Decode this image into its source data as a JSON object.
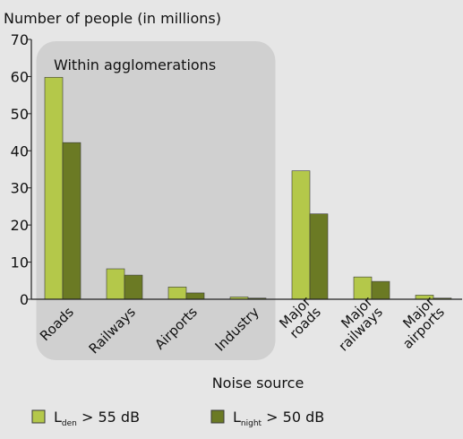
{
  "chart_data": {
    "type": "bar",
    "ylabel": "Number of people (in millions)",
    "xlabel": "Noise source",
    "ylim": [
      0,
      70
    ],
    "yticks": [
      0,
      10,
      20,
      30,
      40,
      50,
      60,
      70
    ],
    "grid": false,
    "categories": [
      [
        "Roads"
      ],
      [
        "Railways"
      ],
      [
        "Airports"
      ],
      [
        "Industry"
      ],
      [
        "Major",
        "roads"
      ],
      [
        "Major",
        "railways"
      ],
      [
        "Major",
        "airports"
      ]
    ],
    "series": [
      {
        "name": "Lden > 55 dB",
        "values": [
          59.8,
          8.2,
          3.3,
          0.6,
          34.6,
          6.0,
          1.1
        ],
        "color": "#b4c84a"
      },
      {
        "name": "Lnight > 50 dB",
        "values": [
          42.2,
          6.5,
          1.7,
          0.3,
          23.0,
          4.8,
          0.3
        ],
        "color": "#6b7a24"
      }
    ],
    "annotations": [
      {
        "text": "Within agglomerations",
        "spans": [
          0,
          3
        ]
      }
    ],
    "legend": {
      "position": "bottom",
      "items": [
        {
          "base": "L",
          "sub": "den",
          "rest": " > 55 dB",
          "color": "#b4c84a"
        },
        {
          "base": "L",
          "sub": "night",
          "rest": " > 50 dB",
          "color": "#6b7a24"
        }
      ]
    },
    "colors": {
      "background": "#e6e6e6",
      "region": "#d0d0d0",
      "axis": "#222222"
    }
  }
}
